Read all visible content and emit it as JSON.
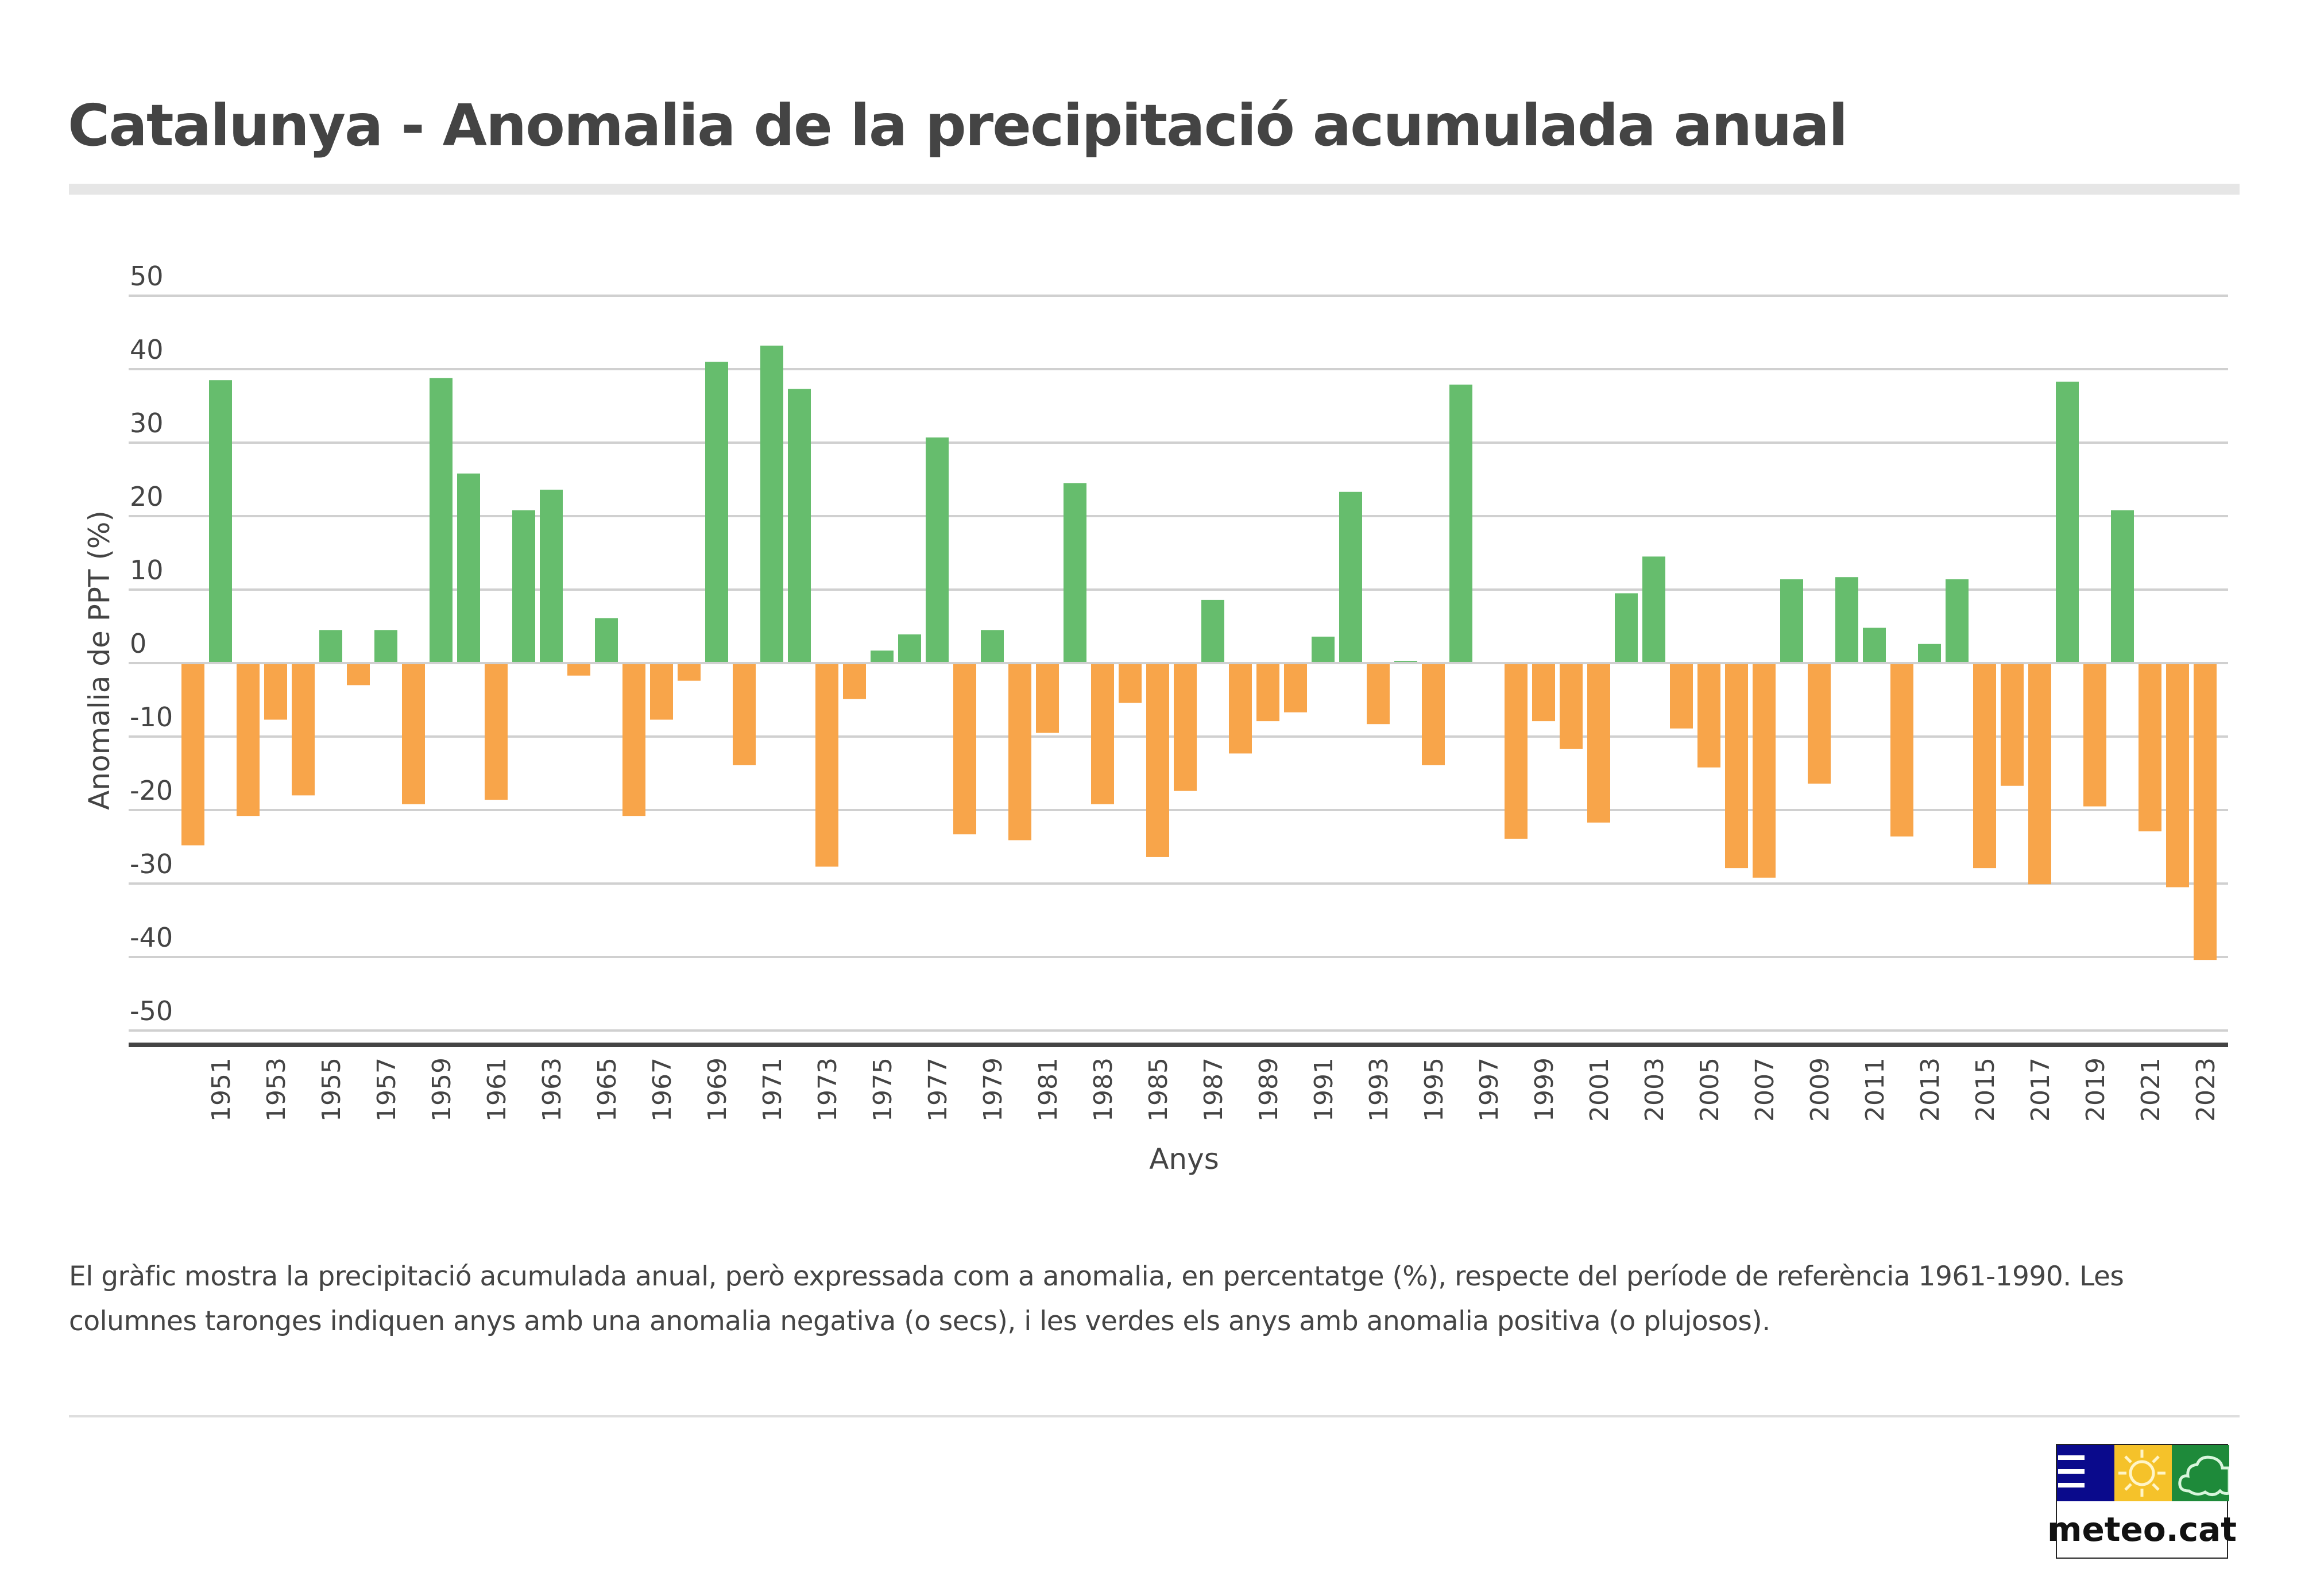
{
  "title": "Catalunya - Anomalia de la precipitació acumulada anual",
  "description": "El gràfic mostra la precipitació acumulada anual, però expressada com a anomalia, en percentatge (%), respecte del període de referència 1961-1990. Les columnes taronges indiquen anys amb una anomalia negativa (o secs), i les verdes els anys amb anomalia positiva (o plujosos).",
  "logo": {
    "text": "meteo.cat",
    "icons": [
      "lines-icon",
      "sun-icon",
      "cloud-icon"
    ],
    "colors": {
      "blue": "#0a0a8c",
      "yellow": "#f5c22a",
      "green": "#1e8a3a"
    }
  },
  "colors": {
    "positive": "#66bd6d",
    "negative": "#f8a54a",
    "grid": "#d0d0d0",
    "axis": "#444444"
  },
  "chart_data": {
    "type": "bar",
    "title": "Catalunya - Anomalia de la precipitació acumulada anual",
    "xlabel": "Anys",
    "ylabel": "Anomalia de PPT (%)",
    "ylim": [
      -50,
      50
    ],
    "yticks": [
      50,
      40,
      30,
      20,
      10,
      0,
      -10,
      -20,
      -30,
      -40,
      -50
    ],
    "xtick_labels": [
      "1951",
      "1953",
      "1955",
      "1957",
      "1959",
      "1961",
      "1963",
      "1965",
      "1967",
      "1969",
      "1971",
      "1973",
      "1975",
      "1977",
      "1979",
      "1981",
      "1983",
      "1985",
      "1987",
      "1989",
      "1991",
      "1993",
      "1995",
      "1997",
      "1999",
      "2001",
      "2003",
      "2005",
      "2007",
      "2009",
      "2011",
      "2013",
      "2015",
      "2017",
      "2019",
      "2021",
      "2023"
    ],
    "grid": true,
    "legend": "none",
    "categories": [
      1950,
      1951,
      1952,
      1953,
      1954,
      1955,
      1956,
      1957,
      1958,
      1959,
      1960,
      1961,
      1962,
      1963,
      1964,
      1965,
      1966,
      1967,
      1968,
      1969,
      1970,
      1971,
      1972,
      1973,
      1974,
      1975,
      1976,
      1977,
      1978,
      1979,
      1980,
      1981,
      1982,
      1983,
      1984,
      1985,
      1986,
      1987,
      1988,
      1989,
      1990,
      1991,
      1992,
      1993,
      1994,
      1995,
      1996,
      1997,
      1998,
      1999,
      2000,
      2001,
      2002,
      2003,
      2004,
      2005,
      2006,
      2007,
      2008,
      2009,
      2010,
      2011,
      2012,
      2013,
      2014,
      2015,
      2016,
      2017,
      2018,
      2019,
      2020,
      2021,
      2022,
      2023
    ],
    "values": [
      -24.8,
      38.5,
      -20.8,
      -7.7,
      -18.0,
      4.5,
      -3.0,
      4.5,
      -19.2,
      38.8,
      25.8,
      -18.6,
      20.8,
      23.6,
      -1.7,
      6.1,
      -20.8,
      -7.7,
      -2.4,
      41.0,
      -13.9,
      43.2,
      37.3,
      -27.7,
      -4.9,
      1.7,
      3.9,
      30.7,
      -23.3,
      4.5,
      -24.1,
      -9.5,
      24.5,
      -19.2,
      -5.4,
      -26.4,
      -17.4,
      8.6,
      -12.3,
      -7.9,
      -6.7,
      3.6,
      23.3,
      -8.3,
      0.3,
      -13.9,
      37.9,
      0,
      -23.9,
      -7.9,
      -11.7,
      -21.7,
      9.5,
      14.5,
      -8.9,
      -14.2,
      -27.9,
      -29.2,
      11.4,
      -16.4,
      11.7,
      4.8,
      -23.6,
      2.6,
      11.4,
      -27.9,
      -16.7,
      -30.1,
      38.3,
      -19.5,
      20.8,
      -22.9,
      -30.5,
      -40.4
    ]
  }
}
